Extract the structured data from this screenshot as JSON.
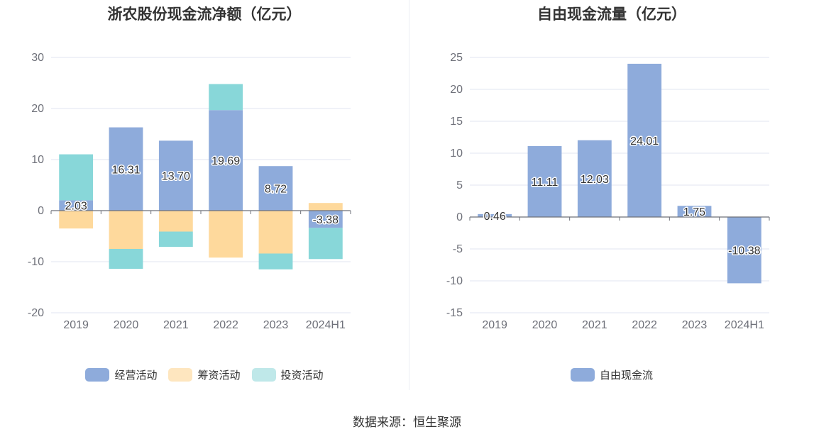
{
  "source": "数据来源：恒生聚源",
  "colors": {
    "operating": "#8eabdb",
    "financing": "#fed99c",
    "investing": "#88d7d9",
    "free_cash_flow": "#8eabdb"
  },
  "chart_data": [
    {
      "type": "bar",
      "stacked": true,
      "title": "浙农股份现金流净额（亿元）",
      "categories": [
        "2019",
        "2020",
        "2021",
        "2022",
        "2023",
        "2024H1"
      ],
      "ylim": [
        -20,
        30
      ],
      "yticks": [
        30,
        20,
        10,
        0,
        -10,
        -20
      ],
      "series": [
        {
          "name": "经营活动",
          "color": "#8eabdb",
          "values": [
            2.03,
            16.31,
            13.7,
            19.69,
            8.72,
            -3.38
          ],
          "labels": [
            "2.03",
            "16.31",
            "13.70",
            "19.69",
            "8.72",
            "-3.38"
          ]
        },
        {
          "name": "筹资活动",
          "color": "#fed99c",
          "values": [
            -3.5,
            -7.5,
            -4.1,
            -9.2,
            -8.4,
            1.5
          ]
        },
        {
          "name": "投资活动",
          "color": "#88d7d9",
          "values": [
            9.0,
            -3.9,
            -3.0,
            5.1,
            -3.1,
            -6.1
          ]
        }
      ],
      "legend": "bottom-center",
      "grid": true
    },
    {
      "type": "bar",
      "title": "自由现金流量（亿元）",
      "categories": [
        "2019",
        "2020",
        "2021",
        "2022",
        "2023",
        "2024H1"
      ],
      "ylim": [
        -15,
        25
      ],
      "yticks": [
        25,
        20,
        15,
        10,
        5,
        0,
        -5,
        -10,
        -15
      ],
      "series": [
        {
          "name": "自由现金流",
          "color": "#8eabdb",
          "values": [
            0.46,
            11.11,
            12.03,
            24.01,
            1.75,
            -10.38
          ],
          "labels": [
            "0.46",
            "11.11",
            "12.03",
            "24.01",
            "1.75",
            "-10.38"
          ]
        }
      ],
      "legend": "bottom-center",
      "grid": true
    }
  ]
}
